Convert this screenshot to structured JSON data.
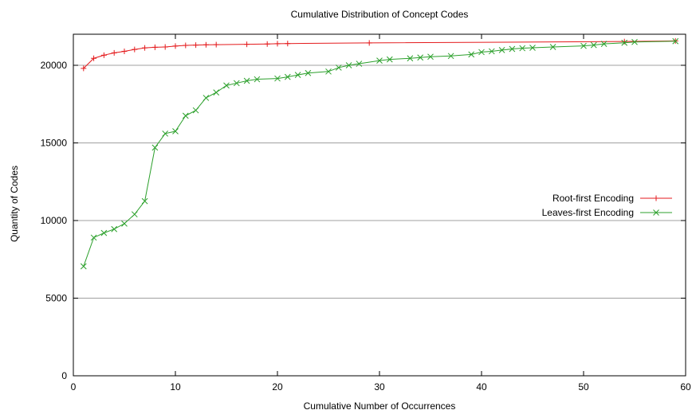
{
  "chart_data": {
    "type": "line",
    "title": "Cumulative Distribution of Concept Codes",
    "xlabel": "Cumulative Number of Occurrences",
    "ylabel": "Quantity of Codes",
    "xlim": [
      0,
      60
    ],
    "ylim": [
      0,
      22000
    ],
    "xticks": [
      0,
      10,
      20,
      30,
      40,
      50,
      60
    ],
    "yticks": [
      0,
      5000,
      10000,
      15000,
      20000
    ],
    "grid": "horizontal",
    "legend": "right",
    "series": [
      {
        "name": "Root-first Encoding",
        "color": "#e41a1c",
        "marker": "plus",
        "x": [
          1,
          2,
          3,
          4,
          5,
          6,
          7,
          8,
          9,
          10,
          11,
          12,
          13,
          14,
          17,
          19,
          20,
          21,
          29,
          54,
          59
        ],
        "y": [
          19800,
          20450,
          20650,
          20800,
          20900,
          21020,
          21120,
          21160,
          21180,
          21240,
          21280,
          21300,
          21320,
          21330,
          21350,
          21370,
          21390,
          21400,
          21440,
          21530,
          21570
        ]
      },
      {
        "name": "Leaves-first Encoding",
        "color": "#2ca02c",
        "marker": "x",
        "x": [
          1,
          2,
          3,
          4,
          5,
          6,
          7,
          8,
          9,
          10,
          11,
          12,
          13,
          14,
          15,
          16,
          17,
          18,
          20,
          21,
          22,
          23,
          25,
          26,
          27,
          28,
          30,
          31,
          33,
          34,
          35,
          37,
          39,
          40,
          41,
          42,
          43,
          44,
          45,
          47,
          50,
          51,
          52,
          54,
          55,
          59
        ],
        "y": [
          7050,
          8900,
          9200,
          9450,
          9800,
          10400,
          11250,
          14700,
          15600,
          15750,
          16750,
          17100,
          17900,
          18250,
          18700,
          18850,
          19000,
          19100,
          19150,
          19250,
          19380,
          19500,
          19600,
          19850,
          20000,
          20100,
          20300,
          20380,
          20450,
          20500,
          20550,
          20600,
          20700,
          20850,
          20900,
          20980,
          21050,
          21100,
          21130,
          21180,
          21250,
          21300,
          21380,
          21450,
          21500,
          21550
        ]
      }
    ]
  }
}
